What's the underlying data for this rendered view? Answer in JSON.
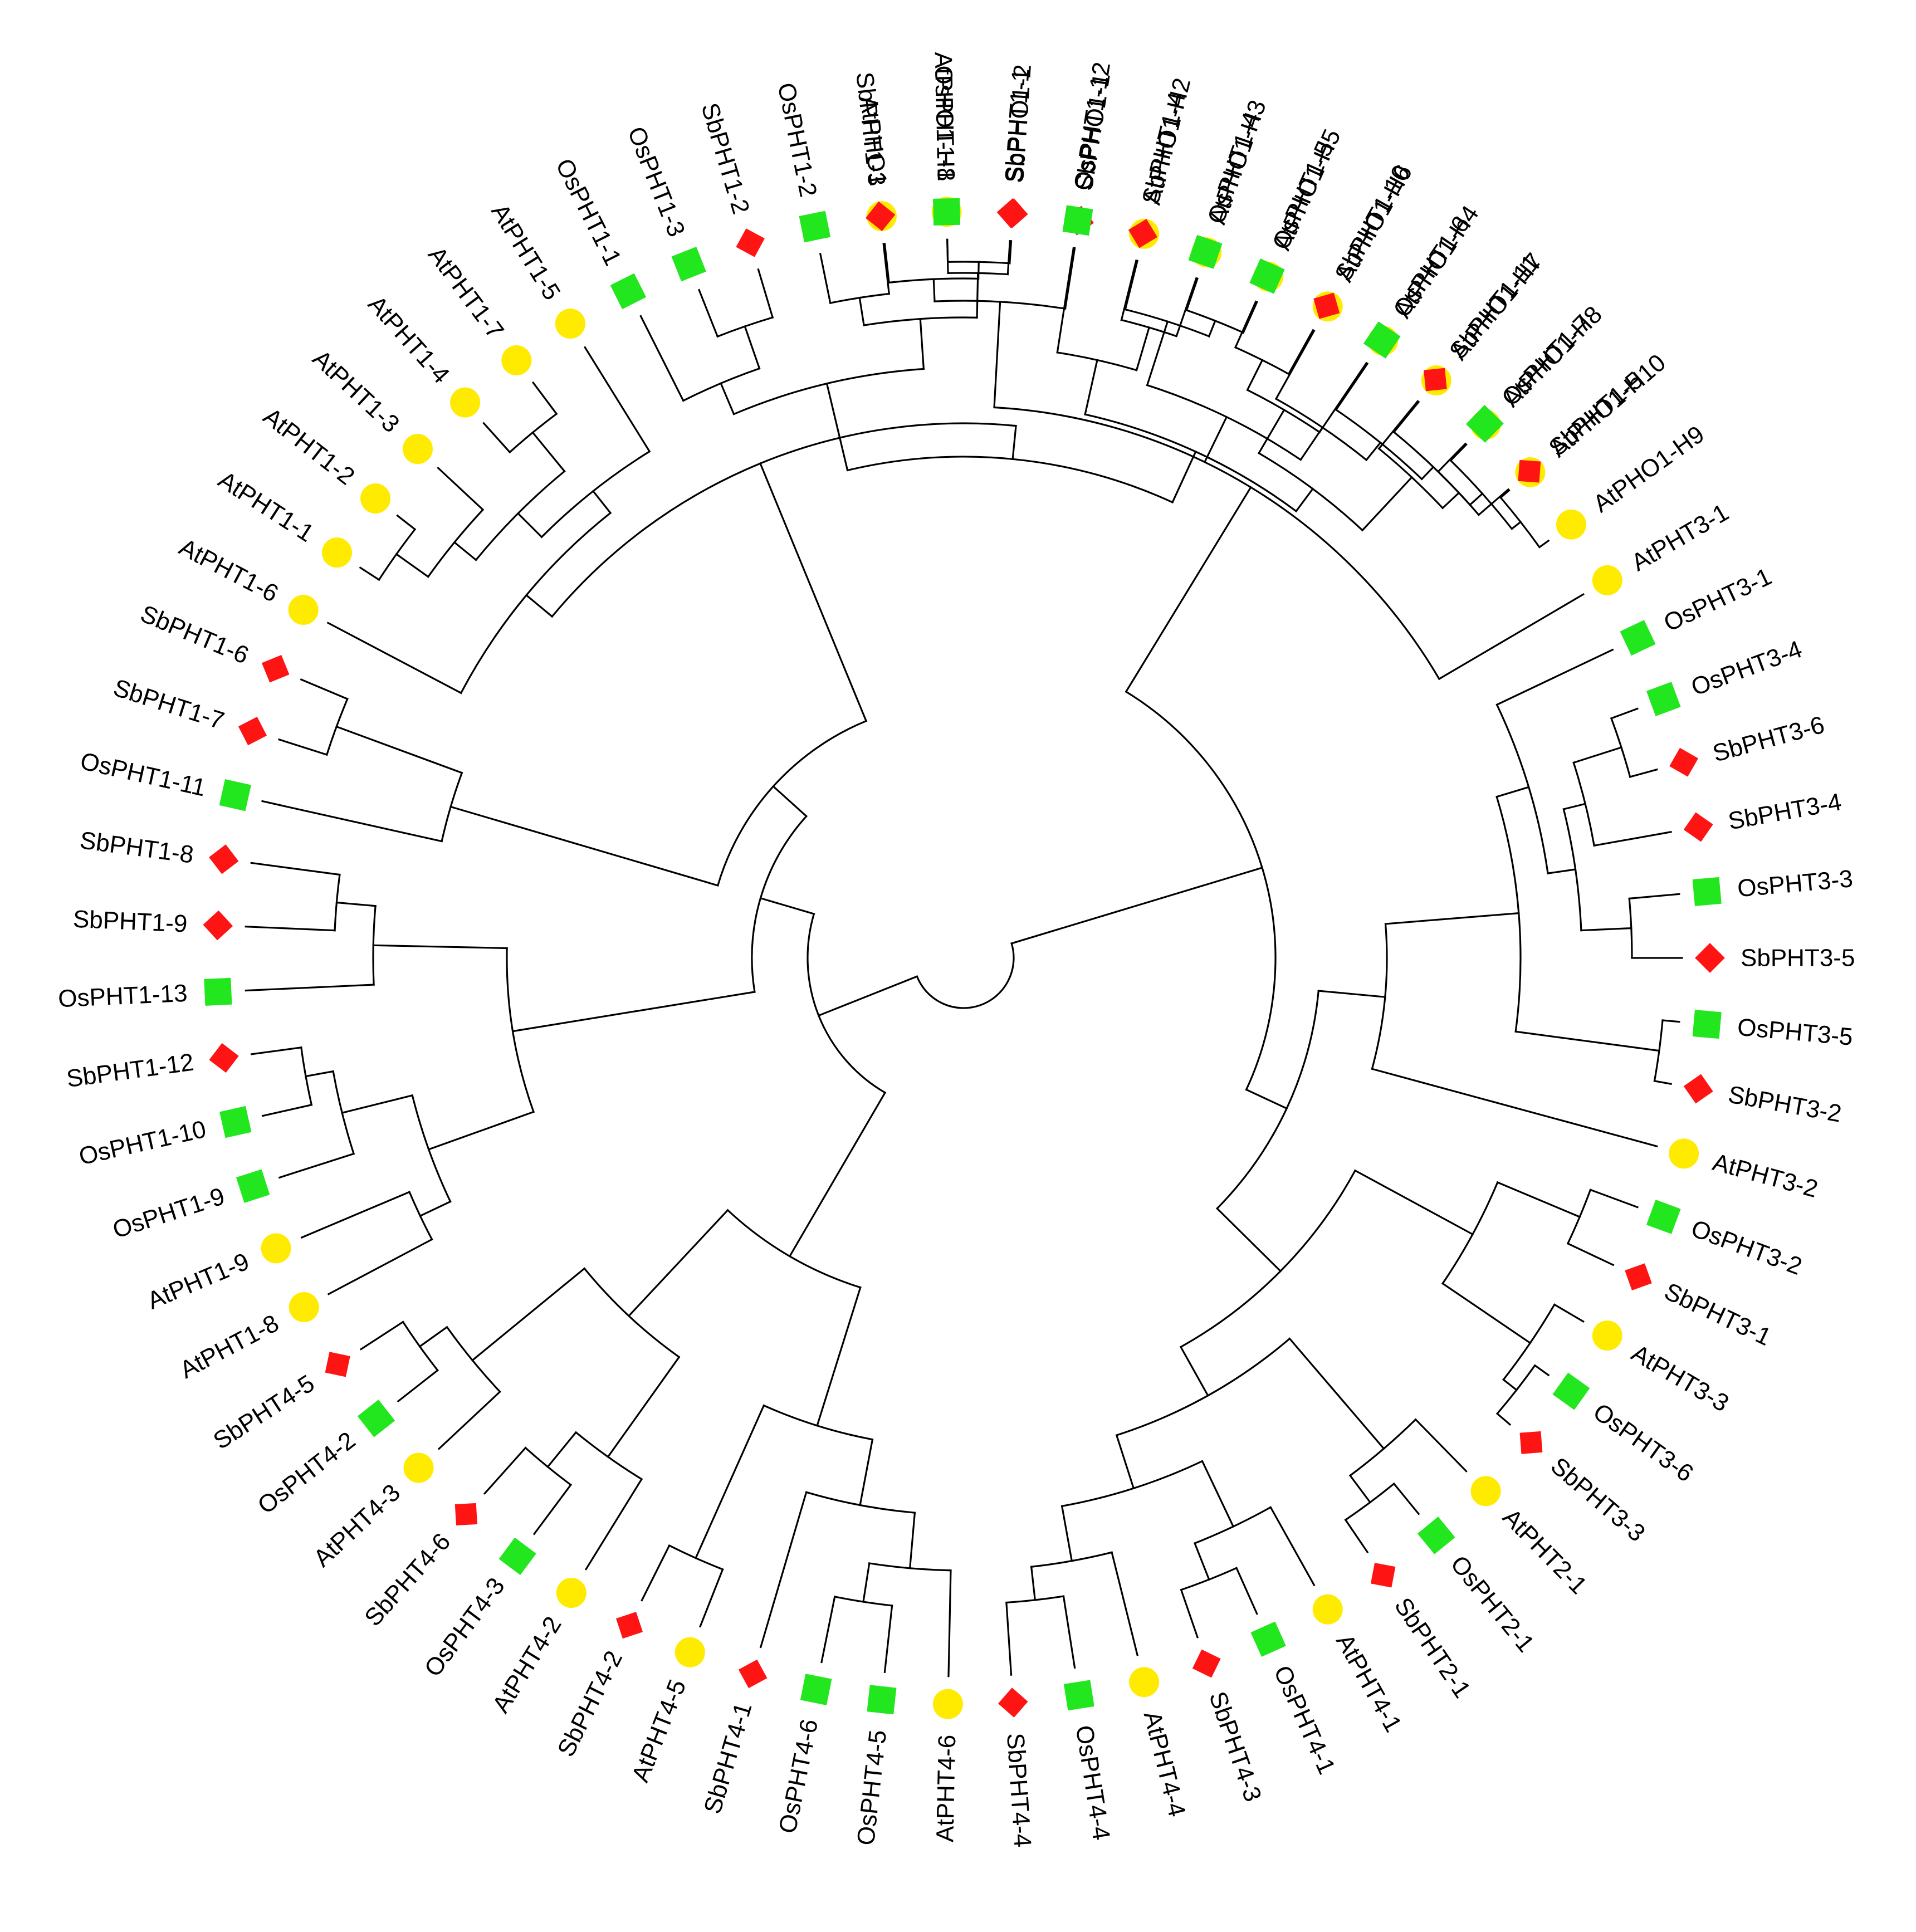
{
  "figure": {
    "type": "circular phylogenetic tree",
    "species_colors": {
      "At": "#FFEB00",
      "Os": "#22E61E",
      "Sb": "#FF1414"
    },
    "species_shapes": {
      "At": "circle",
      "Os": "square",
      "Sb": "diamond"
    }
  },
  "leaves": [
    {
      "label": "AtPHO1",
      "species": "At",
      "angle": -6.3
    },
    {
      "label": "AtPHO1-H1",
      "species": "At",
      "angle": -1.3
    },
    {
      "label": "SbPHO1-2",
      "species": "Sb",
      "angle": 3.8
    },
    {
      "label": "SbPHO1-1",
      "species": "Sb",
      "angle": 8.9
    },
    {
      "label": "AtPHO1-H2",
      "species": "At",
      "angle": 14.0
    },
    {
      "label": "AtPHO1-H3",
      "species": "At",
      "angle": 19.0
    },
    {
      "label": "AtPHO1-H5",
      "species": "At",
      "angle": 24.1
    },
    {
      "label": "AtPHO1-H6",
      "species": "At",
      "angle": 29.2
    },
    {
      "label": "AtPHO1-H4",
      "species": "At",
      "angle": 34.2
    },
    {
      "label": "AtPHO1-H7",
      "species": "At",
      "angle": 39.3
    },
    {
      "label": "AtPHO1-H8",
      "species": "At",
      "angle": 44.4
    },
    {
      "label": "AtPHO1-H10",
      "species": "At",
      "angle": 49.4
    },
    {
      "label": "AtPHO1-H9",
      "species": "At",
      "angle": 54.5
    },
    {
      "label": "AtPHT3-1",
      "species": "At",
      "angle": 59.6
    },
    {
      "label": "OsPHT3-1",
      "species": "Os",
      "angle": 64.6
    },
    {
      "label": "OsPHT3-4",
      "species": "Os",
      "angle": 69.7
    },
    {
      "label": "SbPHT3-6",
      "species": "Sb",
      "angle": 74.8
    },
    {
      "label": "SbPHT3-4",
      "species": "Sb",
      "angle": 79.9
    },
    {
      "label": "OsPHT3-3",
      "species": "Os",
      "angle": 84.9
    },
    {
      "label": "SbPHT3-5",
      "species": "Sb",
      "angle": 90.0
    },
    {
      "label": "OsPHT3-5",
      "species": "Os",
      "angle": 95.1
    },
    {
      "label": "SbPHT3-2",
      "species": "Sb",
      "angle": 100.1
    },
    {
      "label": "AtPHT3-2",
      "species": "At",
      "angle": 105.2
    },
    {
      "label": "OsPHT3-2",
      "species": "Os",
      "angle": 110.3
    },
    {
      "label": "SbPHT3-1",
      "species": "Sb",
      "angle": 115.3
    },
    {
      "label": "AtPHT3-3",
      "species": "At",
      "angle": 120.4
    },
    {
      "label": "OsPHT3-6",
      "species": "Os",
      "angle": 125.5
    },
    {
      "label": "SbPHT3-3",
      "species": "Sb",
      "angle": 130.5
    },
    {
      "label": "AtPHT2-1",
      "species": "At",
      "angle": 135.6
    },
    {
      "label": "OsPHT2-1",
      "species": "Os",
      "angle": 140.7
    },
    {
      "label": "SbPHT2-1",
      "species": "Sb",
      "angle": 145.8
    },
    {
      "label": "AtPHT4-1",
      "species": "At",
      "angle": 150.8
    },
    {
      "label": "OsPHT4-1",
      "species": "Os",
      "angle": 155.9
    },
    {
      "label": "SbPHT4-3",
      "species": "Sb",
      "angle": 161.0
    },
    {
      "label": "AtPHT4-4",
      "species": "At",
      "angle": 166.0
    },
    {
      "label": "OsPHT4-4",
      "species": "Os",
      "angle": 171.1
    },
    {
      "label": "SbPHT4-4",
      "species": "Sb",
      "angle": 176.2
    },
    {
      "label": "AtPHT4-6",
      "species": "At",
      "angle": 181.2
    },
    {
      "label": "OsPHT4-5",
      "species": "Os",
      "angle": 186.3
    },
    {
      "label": "OsPHT4-6",
      "species": "Os",
      "angle": 191.4
    },
    {
      "label": "SbPHT4-1",
      "species": "Sb",
      "angle": 196.4
    },
    {
      "label": "AtPHT4-5",
      "species": "At",
      "angle": 201.5
    },
    {
      "label": "SbPHT4-2",
      "species": "Sb",
      "angle": 206.6
    },
    {
      "label": "AtPHT4-2",
      "species": "At",
      "angle": 211.7
    },
    {
      "label": "OsPHT4-3",
      "species": "Os",
      "angle": 216.7
    },
    {
      "label": "SbPHT4-6",
      "species": "Sb",
      "angle": 221.8
    },
    {
      "label": "AtPHT4-3",
      "species": "At",
      "angle": 226.9
    },
    {
      "label": "OsPHT4-2",
      "species": "Os",
      "angle": 231.9
    },
    {
      "label": "SbPHT4-5",
      "species": "Sb",
      "angle": 237.0
    },
    {
      "label": "AtPHT1-8",
      "species": "At",
      "angle": 242.1
    },
    {
      "label": "AtPHT1-9",
      "species": "At",
      "angle": 247.1
    },
    {
      "label": "OsPHT1-9",
      "species": "Os",
      "angle": 252.2
    },
    {
      "label": "OsPHT1-10",
      "species": "Os",
      "angle": 257.3
    },
    {
      "label": "SbPHT1-12",
      "species": "Sb",
      "angle": 262.3
    },
    {
      "label": "OsPHT1-13",
      "species": "Os",
      "angle": 267.4
    },
    {
      "label": "SbPHT1-9",
      "species": "Sb",
      "angle": 272.5
    },
    {
      "label": "SbPHT1-8",
      "species": "Sb",
      "angle": 277.6
    },
    {
      "label": "OsPHT1-11",
      "species": "Os",
      "angle": 282.6
    },
    {
      "label": "SbPHT1-7",
      "species": "Sb",
      "angle": 287.7
    },
    {
      "label": "SbPHT1-6",
      "species": "Sb",
      "angle": 292.8
    },
    {
      "label": "AtPHT1-6",
      "species": "At",
      "angle": 297.8
    },
    {
      "label": "AtPHT1-1",
      "species": "At",
      "angle": 302.9
    },
    {
      "label": "AtPHT1-2",
      "species": "At",
      "angle": 308.0
    },
    {
      "label": "AtPHT1-3",
      "species": "At",
      "angle": 313.0
    },
    {
      "label": "AtPHT1-4",
      "species": "At",
      "angle": 318.1
    },
    {
      "label": "AtPHT1-7",
      "species": "At",
      "angle": 323.2
    },
    {
      "label": "AtPHT1-5",
      "species": "At",
      "angle": 328.2
    },
    {
      "label": "OsPHT1-1",
      "species": "Os",
      "angle": 333.3
    },
    {
      "label": "OsPHT1-3",
      "species": "Os",
      "angle": 338.4
    },
    {
      "label": "SbPHT1-2",
      "species": "Sb",
      "angle": 343.4
    },
    {
      "label": "OsPHT1-2",
      "species": "Os",
      "angle": 348.5
    },
    {
      "label": "SbPHT1-3",
      "species": "Sb",
      "angle": 353.6
    },
    {
      "label": "OsPHT1-8",
      "species": "Os",
      "angle": 358.7
    },
    {
      "label": "SbPHT1-1",
      "species": "Sb",
      "angle": 363.7
    },
    {
      "label": "OsPHT1-12",
      "species": "Os",
      "angle": 368.8
    },
    {
      "label": "SbPHT1-4",
      "species": "Sb",
      "angle": 373.9
    },
    {
      "label": "OsPHT1-4",
      "species": "Os",
      "angle": 378.9
    },
    {
      "label": "OsPHT1-5",
      "species": "Os",
      "angle": 384.0
    },
    {
      "label": "SbPHT1-10",
      "species": "Sb",
      "angle": 389.1
    },
    {
      "label": "OsPHT1-6",
      "species": "Os",
      "angle": 394.1
    },
    {
      "label": "SbPHT1-11",
      "species": "Sb",
      "angle": 399.2
    },
    {
      "label": "OsPHT1-7",
      "species": "Os",
      "angle": 404.3
    },
    {
      "label": "SbPHT1-5",
      "species": "Sb",
      "angle": 409.3
    }
  ]
}
